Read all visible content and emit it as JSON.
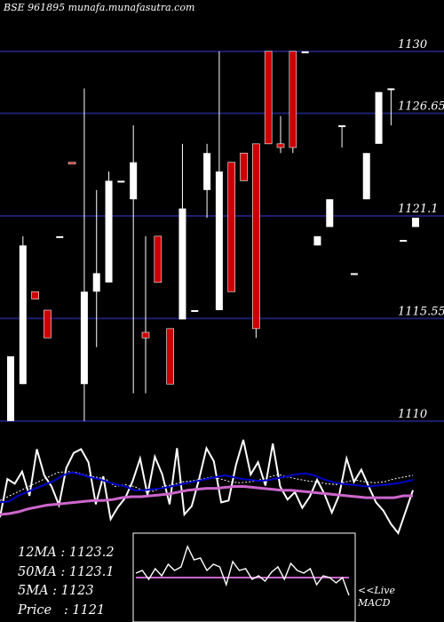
{
  "header": {
    "title": "BSE 961895 munafa.munafasutra.com"
  },
  "stats": {
    "ma12": "12MA : 1123.2",
    "ma50": "50MA : 1123.1",
    "ma5": "5MA : 1123",
    "price": "Price   : 1121"
  },
  "macd_label": {
    "line1": "<<Live",
    "line2": "MACD"
  },
  "colors": {
    "background": "#000000",
    "grid": "#1e1e6e",
    "up": "#ffffff",
    "down": "#cc0000",
    "ma_slow": "#cc66cc",
    "ma_fast": "#0000cc"
  },
  "chart_data": [
    {
      "type": "candlestick",
      "ylim": [
        1109.8,
        1132.3
      ],
      "y_ticks": [
        "1130",
        "1126.65",
        "1121.1",
        "1115.55",
        "1110"
      ],
      "y_tick_values": [
        1130,
        1126.65,
        1121.1,
        1115.55,
        1110
      ],
      "candles": [
        {
          "o": 1110,
          "h": 1113.5,
          "l": 1110,
          "c": 1113.5,
          "color": "up"
        },
        {
          "o": 1112,
          "h": 1120,
          "l": 1112,
          "c": 1119.5,
          "color": "up"
        },
        {
          "o": 1117,
          "h": 1117,
          "l": 1116.6,
          "c": 1116.6,
          "color": "down"
        },
        {
          "o": 1116,
          "h": 1116,
          "l": 1114.5,
          "c": 1114.5,
          "color": "down"
        },
        {
          "o": 1120,
          "h": 1120,
          "l": 1120,
          "c": 1120,
          "color": "up"
        },
        {
          "o": 1124,
          "h": 1124,
          "l": 1124,
          "c": 1124,
          "color": "down"
        },
        {
          "o": 1112,
          "h": 1128,
          "l": 1110,
          "c": 1117,
          "color": "up"
        },
        {
          "o": 1117,
          "h": 1122.5,
          "l": 1114,
          "c": 1118,
          "color": "up"
        },
        {
          "o": 1117.5,
          "h": 1123.5,
          "l": 1117.5,
          "c": 1123,
          "color": "up"
        },
        {
          "o": 1123,
          "h": 1123,
          "l": 1123,
          "c": 1123,
          "color": "up"
        },
        {
          "o": 1122,
          "h": 1126,
          "l": 1111.5,
          "c": 1124,
          "color": "up"
        },
        {
          "o": 1114.5,
          "h": 1120,
          "l": 1111.5,
          "c": 1114.8,
          "color": "down"
        },
        {
          "o": 1120,
          "h": 1120,
          "l": 1117.5,
          "c": 1117.5,
          "color": "down"
        },
        {
          "o": 1112,
          "h": 1115,
          "l": 1112,
          "c": 1115,
          "color": "down"
        },
        {
          "o": 1115.5,
          "h": 1125,
          "l": 1115.5,
          "c": 1121.5,
          "color": "up"
        },
        {
          "o": 1116,
          "h": 1116,
          "l": 1116,
          "c": 1116,
          "color": "up"
        },
        {
          "o": 1122.5,
          "h": 1125,
          "l": 1121,
          "c": 1124.5,
          "color": "up"
        },
        {
          "o": 1116,
          "h": 1130,
          "l": 1116,
          "c": 1123.5,
          "color": "up"
        },
        {
          "o": 1124,
          "h": 1124,
          "l": 1117,
          "c": 1117,
          "color": "down"
        },
        {
          "o": 1124.5,
          "h": 1124.5,
          "l": 1123,
          "c": 1123,
          "color": "down"
        },
        {
          "o": 1125,
          "h": 1125,
          "l": 1114.5,
          "c": 1115,
          "color": "down"
        },
        {
          "o": 1130,
          "h": 1130,
          "l": 1125,
          "c": 1125,
          "color": "down"
        },
        {
          "o": 1125,
          "h": 1126.5,
          "l": 1124.5,
          "c": 1124.8,
          "color": "down"
        },
        {
          "o": 1130,
          "h": 1130,
          "l": 1124.5,
          "c": 1124.8,
          "color": "down"
        },
        {
          "o": 1130,
          "h": 1130,
          "l": 1130,
          "c": 1130,
          "color": "up"
        },
        {
          "o": 1120,
          "h": 1120,
          "l": 1119.5,
          "c": 1119.5,
          "color": "up"
        },
        {
          "o": 1120.5,
          "h": 1122,
          "l": 1120.5,
          "c": 1122,
          "color": "up"
        },
        {
          "o": 1126,
          "h": 1126,
          "l": 1124.8,
          "c": 1126,
          "color": "up"
        },
        {
          "o": 1118,
          "h": 1118,
          "l": 1118,
          "c": 1118,
          "color": "up"
        },
        {
          "o": 1122,
          "h": 1124.5,
          "l": 1122,
          "c": 1124.5,
          "color": "up"
        },
        {
          "o": 1125,
          "h": 1127.8,
          "l": 1125,
          "c": 1127.8,
          "color": "up"
        },
        {
          "o": 1128,
          "h": 1128,
          "l": 1126,
          "c": 1128,
          "color": "up"
        },
        {
          "o": 1119.8,
          "h": 1119.8,
          "l": 1119.8,
          "c": 1119.8,
          "color": "up"
        },
        {
          "o": 1120.5,
          "h": 1121,
          "l": 1120.5,
          "c": 1121,
          "color": "up"
        }
      ]
    },
    {
      "type": "line",
      "series": [
        {
          "color": "#ffffff",
          "values": [
            0.17,
            0.58,
            0.53,
            0.66,
            0.4,
            0.9,
            0.62,
            0.5,
            0.3,
            0.7,
            0.86,
            0.9,
            0.76,
            0.31,
            0.61,
            0.15,
            0.28,
            0.38,
            0.56,
            0.8,
            0.41,
            0.82,
            0.63,
            0.31,
            0.91,
            0.2,
            0.29,
            0.58,
            0.91,
            0.77,
            0.33,
            0.35,
            0.73,
            1.0,
            0.63,
            0.76,
            0.51,
            0.96,
            0.5,
            0.36,
            0.44,
            0.27,
            0.39,
            0.57,
            0.42,
            0.22,
            0.41,
            0.8,
            0.55,
            0.68,
            0.5,
            0.33,
            0.24,
            0.1,
            0.0,
            0.23,
            0.46
          ]
        },
        {
          "color": "#ffffff",
          "dash": true,
          "values": [
            0.35,
            0.4,
            0.45,
            0.5,
            0.55,
            0.6,
            0.65,
            0.66,
            0.65,
            0.62,
            0.6,
            0.58,
            0.5,
            0.52,
            0.5,
            0.45,
            0.45,
            0.5,
            0.52,
            0.55,
            0.56,
            0.58,
            0.6,
            0.58,
            0.55,
            0.54,
            0.55,
            0.57,
            0.6,
            0.63,
            0.6,
            0.58,
            0.56,
            0.55,
            0.53,
            0.52,
            0.55,
            0.57,
            0.55,
            0.54,
            0.55,
            0.58,
            0.6,
            0.62
          ]
        },
        {
          "color": "#0000cc",
          "values": [
            0.33,
            0.34,
            0.4,
            0.44,
            0.48,
            0.52,
            0.56,
            0.62,
            0.65,
            0.63,
            0.6,
            0.58,
            0.55,
            0.52,
            0.5,
            0.46,
            0.46,
            0.47,
            0.48,
            0.5,
            0.52,
            0.54,
            0.56,
            0.58,
            0.6,
            0.62,
            0.6,
            0.58,
            0.57,
            0.56,
            0.57,
            0.59,
            0.61,
            0.63,
            0.64,
            0.62,
            0.58,
            0.55,
            0.53,
            0.52,
            0.51,
            0.5,
            0.51,
            0.52,
            0.53,
            0.55,
            0.57
          ]
        },
        {
          "color": "#cc66cc",
          "thick": true,
          "values": [
            0.2,
            0.21,
            0.23,
            0.26,
            0.28,
            0.3,
            0.31,
            0.32,
            0.33,
            0.34,
            0.35,
            0.35,
            0.36,
            0.38,
            0.39,
            0.39,
            0.4,
            0.41,
            0.42,
            0.44,
            0.46,
            0.47,
            0.48,
            0.48,
            0.49,
            0.5,
            0.5,
            0.49,
            0.48,
            0.47,
            0.46,
            0.46,
            0.45,
            0.44,
            0.43,
            0.42,
            0.41,
            0.4,
            0.39,
            0.38,
            0.38,
            0.38,
            0.38,
            0.4,
            0.4
          ]
        }
      ]
    },
    {
      "type": "line",
      "series": [
        {
          "color": "#cc66cc",
          "values": [
            0.5,
            0.5
          ]
        },
        {
          "color": "#ffffff",
          "values": [
            0.55,
            0.58,
            0.48,
            0.6,
            0.52,
            0.65,
            0.58,
            0.62,
            0.85,
            0.7,
            0.72,
            0.58,
            0.65,
            0.62,
            0.42,
            0.68,
            0.58,
            0.6,
            0.48,
            0.52,
            0.46,
            0.56,
            0.62,
            0.48,
            0.66,
            0.58,
            0.55,
            0.6,
            0.42,
            0.52,
            0.5,
            0.44,
            0.5,
            0.3
          ]
        }
      ]
    }
  ]
}
